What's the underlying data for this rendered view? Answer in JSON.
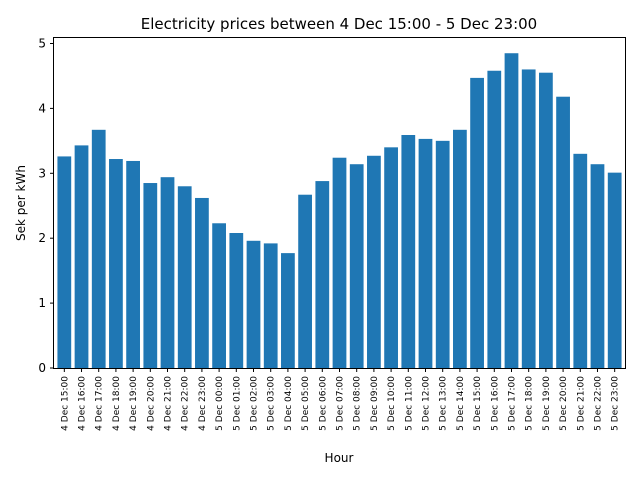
{
  "chart_data": {
    "type": "bar",
    "title": "Electricity prices between 4 Dec 15:00 - 5 Dec 23:00",
    "xlabel": "Hour",
    "ylabel": "Sek per kWh",
    "ylim": [
      0,
      5.1
    ],
    "yticks": [
      0,
      1,
      2,
      3,
      4,
      5
    ],
    "grid": false,
    "bar_color": "#1f77b4",
    "categories": [
      "4 Dec 15:00",
      "4 Dec 16:00",
      "4 Dec 17:00",
      "4 Dec 18:00",
      "4 Dec 19:00",
      "4 Dec 20:00",
      "4 Dec 21:00",
      "4 Dec 22:00",
      "4 Dec 23:00",
      "5 Dec 00:00",
      "5 Dec 01:00",
      "5 Dec 02:00",
      "5 Dec 03:00",
      "5 Dec 04:00",
      "5 Dec 05:00",
      "5 Dec 06:00",
      "5 Dec 07:00",
      "5 Dec 08:00",
      "5 Dec 09:00",
      "5 Dec 10:00",
      "5 Dec 11:00",
      "5 Dec 12:00",
      "5 Dec 13:00",
      "5 Dec 14:00",
      "5 Dec 15:00",
      "5 Dec 16:00",
      "5 Dec 17:00",
      "5 Dec 18:00",
      "5 Dec 19:00",
      "5 Dec 20:00",
      "5 Dec 21:00",
      "5 Dec 22:00",
      "5 Dec 23:00"
    ],
    "values": [
      3.26,
      3.43,
      3.67,
      3.22,
      3.19,
      2.85,
      2.94,
      2.8,
      2.62,
      2.23,
      2.08,
      1.96,
      1.92,
      1.77,
      2.67,
      2.88,
      3.24,
      3.14,
      3.27,
      3.4,
      3.59,
      3.53,
      3.5,
      3.67,
      4.47,
      4.58,
      4.85,
      4.6,
      4.55,
      4.18,
      3.3,
      3.14,
      3.01
    ]
  }
}
